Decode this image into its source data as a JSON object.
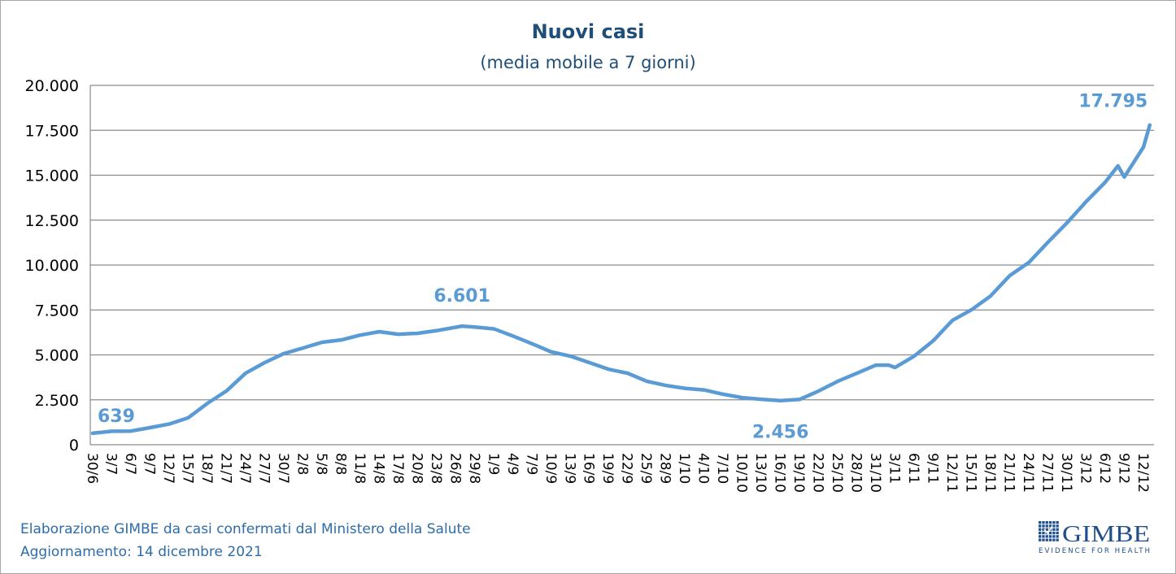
{
  "chart_data": {
    "type": "line",
    "title": "Nuovi casi",
    "subtitle": "(media mobile a 7 giorni)",
    "year": 2021,
    "ylim": [
      0,
      20000
    ],
    "yticks": [
      0,
      2500,
      5000,
      7500,
      10000,
      12500,
      15000,
      17500,
      20000
    ],
    "ytick_labels": [
      "0",
      "2.500",
      "5.000",
      "7.500",
      "10.000",
      "12.500",
      "15.000",
      "17.500",
      "20.000"
    ],
    "xtick_labels": [
      "30/6",
      "3/7",
      "6/7",
      "9/7",
      "12/7",
      "15/7",
      "18/7",
      "21/7",
      "24/7",
      "27/7",
      "30/7",
      "2/8",
      "5/8",
      "8/8",
      "11/8",
      "14/8",
      "17/8",
      "20/8",
      "23/8",
      "26/8",
      "29/8",
      "1/9",
      "4/9",
      "7/9",
      "10/9",
      "13/9",
      "16/9",
      "19/9",
      "22/9",
      "25/9",
      "28/9",
      "1/10",
      "4/10",
      "7/10",
      "10/10",
      "13/10",
      "16/10",
      "19/10",
      "22/10",
      "25/10",
      "28/10",
      "31/10",
      "3/11",
      "6/11",
      "9/11",
      "12/11",
      "15/11",
      "18/11",
      "21/11",
      "24/11",
      "27/11",
      "30/11",
      "3/12",
      "6/12",
      "9/12",
      "12/12"
    ],
    "grid": true,
    "line_color": "#5b9bd5",
    "series": [
      {
        "x": [
          "30/6",
          "3/7",
          "6/7",
          "9/7",
          "12/7",
          "15/7",
          "18/7",
          "21/7",
          "24/7",
          "27/7",
          "30/7",
          "2/8",
          "5/8",
          "8/8",
          "11/8",
          "14/8",
          "17/8",
          "20/8",
          "23/8",
          "27/8",
          "29/8",
          "1/9",
          "4/9",
          "7/9",
          "10/9",
          "13/9",
          "16/9",
          "19/9",
          "22/9",
          "25/9",
          "28/9",
          "1/10",
          "4/10",
          "7/10",
          "10/10",
          "13/10",
          "16/10",
          "19/10",
          "22/10",
          "25/10",
          "28/10",
          "31/10",
          "2/11",
          "3/11",
          "6/11",
          "9/11",
          "12/11",
          "15/11",
          "18/11",
          "21/11",
          "24/11",
          "27/11",
          "30/11",
          "3/12",
          "6/12",
          "8/12",
          "9/12",
          "12/12",
          "13/12"
        ],
        "values": [
          639,
          750,
          760,
          950,
          1150,
          1500,
          2300,
          2990,
          3980,
          4570,
          5070,
          5380,
          5700,
          5830,
          6100,
          6290,
          6150,
          6200,
          6350,
          6601,
          6550,
          6450,
          6050,
          5620,
          5170,
          4930,
          4570,
          4200,
          3980,
          3530,
          3300,
          3140,
          3050,
          2810,
          2620,
          2530,
          2456,
          2520,
          2990,
          3530,
          3980,
          4430,
          4430,
          4300,
          4930,
          5790,
          6920,
          7510,
          8280,
          9410,
          10140,
          11270,
          12350,
          13530,
          14610,
          15520,
          14900,
          16560,
          17795
        ]
      }
    ],
    "data_labels": [
      {
        "x": "30/6",
        "text": "639"
      },
      {
        "x": "27/8",
        "text": "6.601"
      },
      {
        "x": "16/10",
        "text": "2.456"
      },
      {
        "x": "13/12",
        "text": "17.795"
      }
    ]
  },
  "footer": {
    "source": "Elaborazione GIMBE da casi confermati dal Ministero della Salute",
    "updated": "Aggiornamento: 14 dicembre 2021"
  },
  "logo": {
    "name": "GIMBE",
    "tagline": "EVIDENCE FOR HEALTH",
    "color": "#1f4e8c"
  }
}
